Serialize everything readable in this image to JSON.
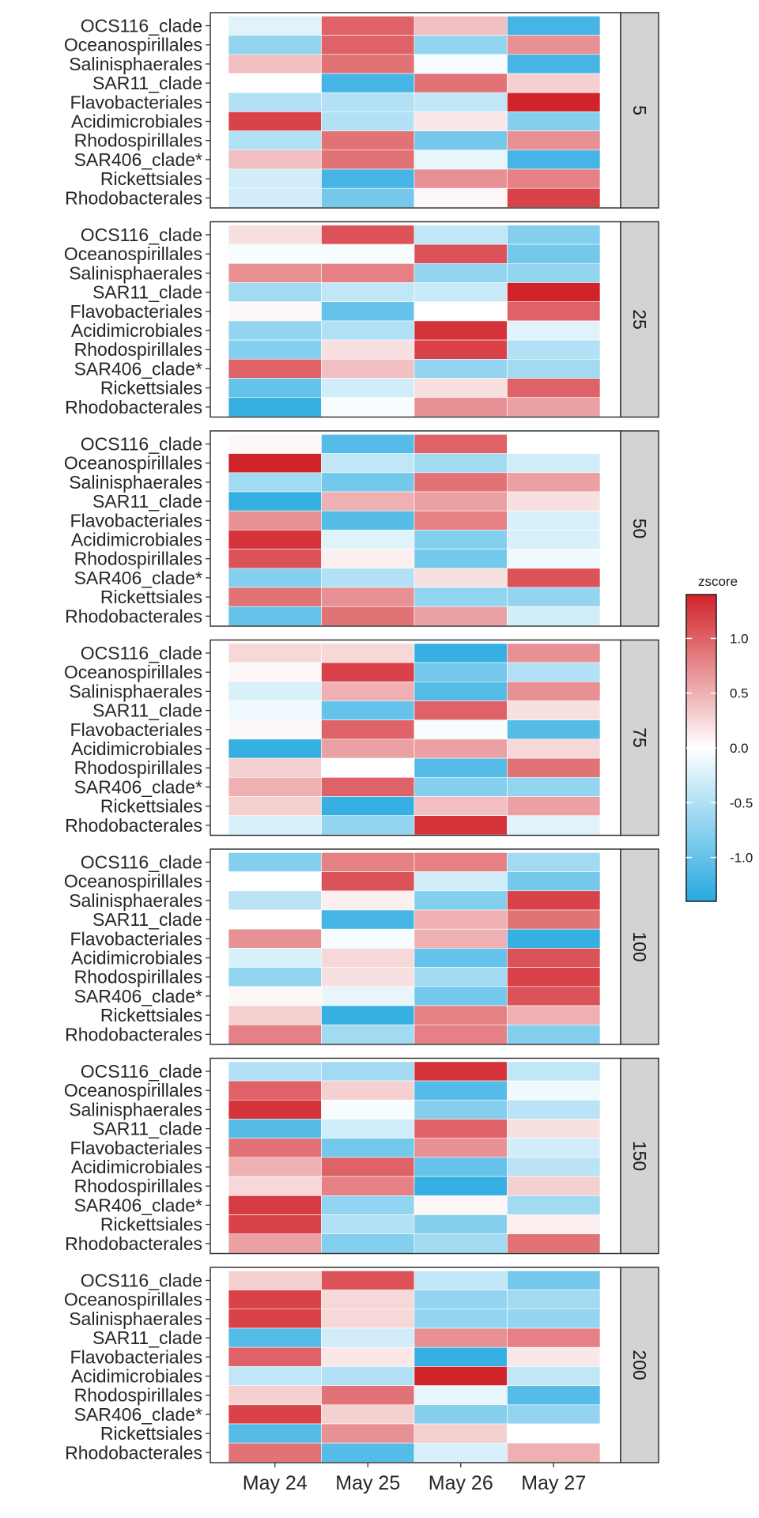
{
  "chart_data": {
    "type": "heatmap",
    "legend_title": "zscore",
    "legend_ticks": [
      1.0,
      0.5,
      0.0,
      -0.5,
      -1.0
    ],
    "legend_tick_labels": [
      "1.0",
      "0.5",
      "0.0",
      "-0.5",
      "-1.0"
    ],
    "color_range": [
      -1.4,
      1.4
    ],
    "colors": {
      "low": "#27a9e1",
      "mid": "#ffffff",
      "high": "#d1232a"
    },
    "x_categories": [
      "May 24",
      "May 25",
      "May 26",
      "May 27"
    ],
    "y_categories": [
      "OCS116_clade",
      "Oceanospirillales",
      "Salinisphaerales",
      "SAR11_clade",
      "Flavobacteriales",
      "Acidimicrobiales",
      "Rhodospirillales",
      "SAR406_clade*",
      "Rickettsiales",
      "Rhodobacterales"
    ],
    "facets": [
      {
        "label": "5",
        "values": [
          [
            -0.2,
            1.0,
            0.4,
            -1.2
          ],
          [
            -0.7,
            1.0,
            -0.7,
            0.7
          ],
          [
            0.4,
            0.9,
            -0.05,
            -1.2
          ],
          [
            0.0,
            -1.2,
            0.9,
            0.3
          ],
          [
            -0.5,
            -0.5,
            -0.4,
            1.4
          ],
          [
            1.2,
            -0.5,
            0.15,
            -0.8
          ],
          [
            -0.5,
            0.9,
            -0.9,
            0.7
          ],
          [
            0.4,
            0.9,
            -0.15,
            -1.2
          ],
          [
            -0.3,
            -1.2,
            0.7,
            0.8
          ],
          [
            -0.3,
            -0.9,
            0.05,
            1.2
          ]
        ]
      },
      {
        "label": "25",
        "values": [
          [
            0.2,
            1.1,
            -0.4,
            -0.8
          ],
          [
            -0.05,
            -0.05,
            1.1,
            -0.9
          ],
          [
            0.7,
            0.8,
            -0.7,
            -0.7
          ],
          [
            -0.6,
            -0.4,
            -0.35,
            1.4
          ],
          [
            0.05,
            -1.0,
            0.0,
            1.0
          ],
          [
            -0.7,
            -0.5,
            1.3,
            -0.2
          ],
          [
            -0.8,
            0.2,
            1.2,
            -0.5
          ],
          [
            1.0,
            0.4,
            -0.7,
            -0.6
          ],
          [
            -1.0,
            -0.3,
            0.2,
            1.0
          ],
          [
            -1.3,
            -0.05,
            0.7,
            0.6
          ]
        ]
      },
      {
        "label": "50",
        "values": [
          [
            0.05,
            -1.1,
            1.0,
            0.0
          ],
          [
            1.4,
            -0.4,
            -0.6,
            -0.3
          ],
          [
            -0.6,
            -0.9,
            0.9,
            0.6
          ],
          [
            -1.3,
            0.5,
            0.6,
            0.2
          ],
          [
            0.7,
            -1.1,
            0.8,
            -0.25
          ],
          [
            1.3,
            -0.2,
            -0.8,
            -0.25
          ],
          [
            1.1,
            0.1,
            -0.9,
            -0.1
          ],
          [
            -0.8,
            -0.5,
            0.2,
            1.1
          ],
          [
            0.9,
            0.7,
            -0.7,
            -0.7
          ],
          [
            -1.0,
            0.9,
            0.6,
            -0.3
          ]
        ]
      },
      {
        "label": "75",
        "values": [
          [
            0.25,
            0.25,
            -1.3,
            0.7
          ],
          [
            0.05,
            1.2,
            -0.9,
            -0.5
          ],
          [
            -0.25,
            0.5,
            -1.1,
            0.7
          ],
          [
            -0.1,
            -1.0,
            1.0,
            0.2
          ],
          [
            0.05,
            1.0,
            -0.05,
            -1.1
          ],
          [
            -1.3,
            0.6,
            0.6,
            0.25
          ],
          [
            0.3,
            0.0,
            -1.1,
            0.9
          ],
          [
            0.5,
            1.0,
            -0.8,
            -0.7
          ],
          [
            0.3,
            -1.3,
            0.4,
            0.6
          ],
          [
            -0.25,
            -0.7,
            1.3,
            -0.2
          ]
        ]
      },
      {
        "label": "100",
        "values": [
          [
            -0.8,
            0.8,
            0.8,
            -0.6
          ],
          [
            0.0,
            1.1,
            -0.3,
            -0.9
          ],
          [
            -0.45,
            0.1,
            -0.8,
            1.2
          ],
          [
            0.0,
            -1.2,
            0.5,
            0.9
          ],
          [
            0.7,
            -0.05,
            0.5,
            -1.3
          ],
          [
            -0.25,
            0.25,
            -1.0,
            1.1
          ],
          [
            -0.7,
            0.2,
            -0.6,
            1.2
          ],
          [
            0.05,
            -0.15,
            -0.9,
            1.1
          ],
          [
            0.3,
            -1.3,
            0.8,
            0.5
          ],
          [
            0.8,
            -0.6,
            0.8,
            -0.8
          ]
        ]
      },
      {
        "label": "150",
        "values": [
          [
            -0.5,
            -0.6,
            1.3,
            -0.4
          ],
          [
            1.0,
            0.3,
            -1.1,
            -0.1
          ],
          [
            1.3,
            -0.05,
            -0.8,
            -0.45
          ],
          [
            -1.1,
            -0.3,
            1.0,
            0.2
          ],
          [
            0.9,
            -0.9,
            0.7,
            -0.3
          ],
          [
            0.5,
            1.0,
            -1.0,
            -0.45
          ],
          [
            0.25,
            0.8,
            -1.3,
            0.3
          ],
          [
            1.25,
            -0.7,
            0.05,
            -0.6
          ],
          [
            1.2,
            -0.5,
            -0.8,
            0.1
          ],
          [
            0.6,
            -0.8,
            -0.6,
            0.9
          ]
        ]
      },
      {
        "label": "200",
        "values": [
          [
            0.3,
            1.1,
            -0.4,
            -0.9
          ],
          [
            1.2,
            0.25,
            -0.7,
            -0.6
          ],
          [
            1.2,
            0.25,
            -0.7,
            -0.7
          ],
          [
            -1.1,
            -0.3,
            0.7,
            0.8
          ],
          [
            1.0,
            0.15,
            -1.3,
            0.15
          ],
          [
            -0.4,
            -0.5,
            1.4,
            -0.4
          ],
          [
            0.3,
            0.9,
            -0.15,
            -1.1
          ],
          [
            1.2,
            0.3,
            -0.8,
            -0.7
          ],
          [
            -1.1,
            0.7,
            0.3,
            0.0
          ],
          [
            0.9,
            -1.1,
            -0.25,
            0.5
          ]
        ]
      }
    ]
  }
}
